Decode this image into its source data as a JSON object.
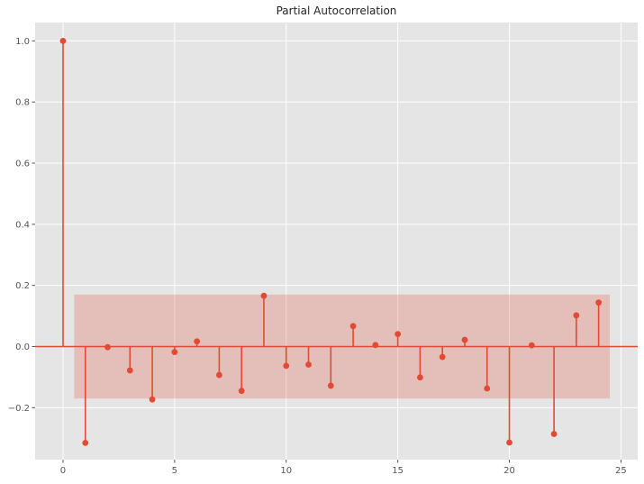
{
  "figure": {
    "background": "#ffffff",
    "plot_bg": "#e5e5e5",
    "grid_color": "#ffffff",
    "tick_color": "#555555",
    "title_color": "#262626",
    "accent": "#e24a33",
    "band_fill": "rgba(226,74,51,0.25)"
  },
  "chart_data": {
    "type": "stem",
    "title": "Partial Autocorrelation",
    "xlabel": "",
    "ylabel": "",
    "x": [
      0,
      1,
      2,
      3,
      4,
      5,
      6,
      7,
      8,
      9,
      10,
      11,
      12,
      13,
      14,
      15,
      16,
      17,
      18,
      19,
      20,
      21,
      22,
      23,
      24
    ],
    "values": [
      1.0,
      -0.315,
      -0.002,
      -0.078,
      -0.173,
      -0.018,
      0.017,
      -0.093,
      -0.145,
      0.166,
      -0.063,
      -0.059,
      -0.128,
      0.067,
      0.005,
      0.041,
      -0.101,
      -0.034,
      0.022,
      -0.137,
      -0.314,
      0.004,
      -0.286,
      0.102,
      0.144
    ],
    "xlim": [
      -1.25,
      25.75
    ],
    "ylim": [
      -0.37,
      1.06
    ],
    "x_ticks": [
      0,
      5,
      10,
      15,
      20,
      25
    ],
    "x_tick_labels": [
      "0",
      "5",
      "10",
      "15",
      "20",
      "25"
    ],
    "y_ticks": [
      1.0,
      0.8,
      0.6,
      0.4,
      0.2,
      0.0,
      -0.2
    ],
    "y_tick_labels": [
      "1.0",
      "0.8",
      "0.6",
      "0.4",
      "0.2",
      "0.0",
      "−0.2"
    ],
    "zero_line": 0.0,
    "confidence_band": {
      "x_start": 0.5,
      "x_end": 24.5,
      "y_low": -0.17,
      "y_high": 0.17
    },
    "grid": true,
    "legend": null
  }
}
